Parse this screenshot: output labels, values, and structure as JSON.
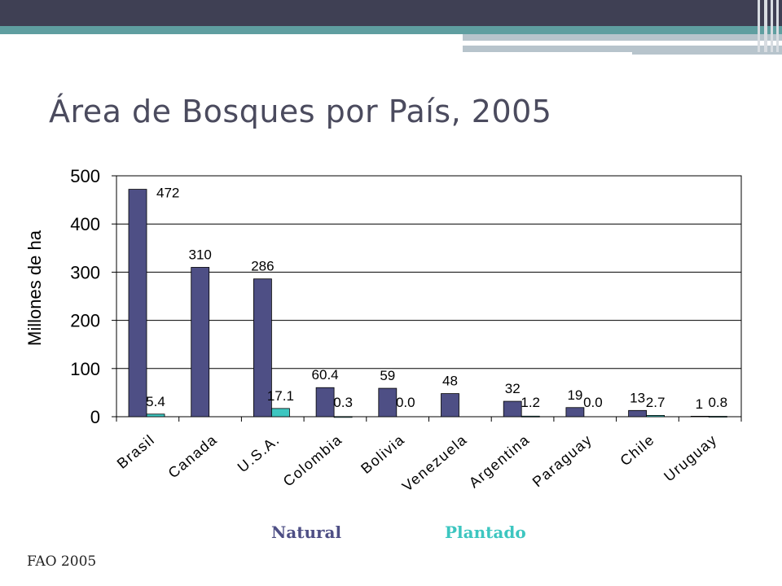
{
  "slide": {
    "title": "Área de Bosques por País, 2005",
    "source": "FAO 2005"
  },
  "colors": {
    "banner_dark": "#3f4054",
    "banner_teal": "#5f9ea0",
    "banner_grey": "#b7c4cc",
    "title": "#4b4b5e",
    "natural": "#4e4f85",
    "plantado": "#3dc6c0",
    "plantado_label": "#3dc6c0"
  },
  "chart_data": {
    "type": "bar",
    "title": "",
    "xlabel": "",
    "ylabel": "Millones de ha",
    "ylim": [
      0,
      500
    ],
    "yticks": [
      0,
      100,
      200,
      300,
      400,
      500
    ],
    "grid": true,
    "legend_position": "bottom",
    "categories": [
      "Brasil",
      "Canada",
      "U.S.A.",
      "Colombia",
      "Bolivia",
      "Venezuela",
      "Argentina",
      "Paraguay",
      "Chile",
      "Uruguay"
    ],
    "series": [
      {
        "name": "Natural",
        "values": [
          472,
          310,
          286,
          60.4,
          59,
          48,
          32,
          19,
          13,
          1
        ],
        "labels": [
          "472",
          "310",
          "286",
          "60.4",
          "59",
          "48",
          "32",
          "19",
          "13",
          "1"
        ]
      },
      {
        "name": "Plantado",
        "values": [
          5.4,
          null,
          17.1,
          0.3,
          0.0,
          null,
          1.2,
          0.0,
          2.7,
          0.8
        ],
        "labels": [
          "5.4",
          "",
          "17.1",
          "0.3",
          "0.0",
          "",
          "1.2",
          "0.0",
          "2.7",
          "0.8"
        ]
      }
    ]
  }
}
